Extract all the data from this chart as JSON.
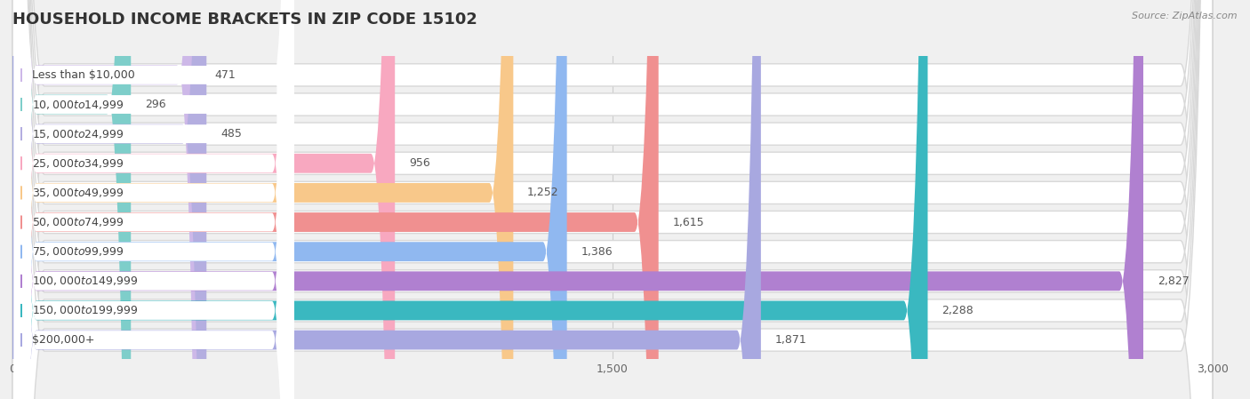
{
  "title": "Household Income Brackets in Zip Code 15102",
  "source": "Source: ZipAtlas.com",
  "categories": [
    "Less than $10,000",
    "$10,000 to $14,999",
    "$15,000 to $24,999",
    "$25,000 to $34,999",
    "$35,000 to $49,999",
    "$50,000 to $74,999",
    "$75,000 to $99,999",
    "$100,000 to $149,999",
    "$150,000 to $199,999",
    "$200,000+"
  ],
  "values": [
    471,
    296,
    485,
    956,
    1252,
    1615,
    1386,
    2827,
    2288,
    1871
  ],
  "bar_colors": [
    "#cdb8e8",
    "#7ececa",
    "#b4aee0",
    "#f8a8c0",
    "#f8c88a",
    "#f09090",
    "#90b8f0",
    "#b080d0",
    "#3ab8c0",
    "#a8a8e0"
  ],
  "xlim": [
    0,
    3000
  ],
  "xticks": [
    0,
    1500,
    3000
  ],
  "xtick_labels": [
    "0",
    "1,500",
    "3,000"
  ],
  "bg_color": "#f0f0f0",
  "row_bg_color": "#ffffff",
  "row_border_color": "#dddddd",
  "title_fontsize": 13,
  "label_fontsize": 9,
  "value_fontsize": 9,
  "title_color": "#333333",
  "label_color": "#444444",
  "value_color": "#555555",
  "source_color": "#888888"
}
